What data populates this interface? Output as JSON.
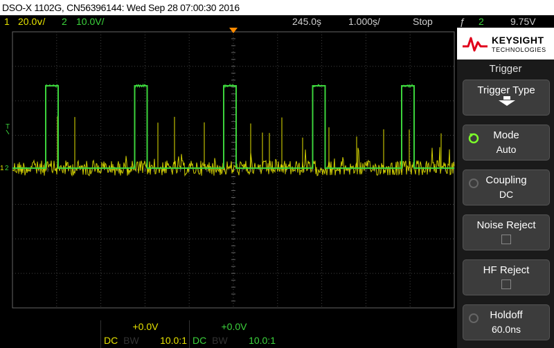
{
  "title": "DSO-X 1102G, CN56396144: Wed Sep 28 07:00:30 2016",
  "status": {
    "ch1_num": "1",
    "ch1_scale": "20.0ⅴ/",
    "ch2_num": "2",
    "ch2_scale": "10.0V/",
    "time_pos": "245.0ș",
    "time_scale": "1.000ș/",
    "run_state": "Stop",
    "trig_icon": "ƒ",
    "trig_source": "2",
    "trig_level": "9.75V"
  },
  "bottom": {
    "ch1": {
      "offset": "+0.0V",
      "coupling": "DC",
      "bw": "BW",
      "probe": "10.0:1"
    },
    "ch2": {
      "offset": "+0.0V",
      "coupling": "DC",
      "bw": "BW",
      "probe": "10.0:1"
    }
  },
  "brand": {
    "name": "KEYSIGHT",
    "sub": "TECHNOLOGIES"
  },
  "menu": {
    "title": "Trigger",
    "softkeys": [
      {
        "label": "Trigger Type",
        "value": ""
      },
      {
        "label": "Mode",
        "value": "Auto"
      },
      {
        "label": "Coupling",
        "value": "DC"
      },
      {
        "label": "Noise Reject",
        "value": ""
      },
      {
        "label": "HF Reject",
        "value": ""
      },
      {
        "label": "Holdoff",
        "value": "60.0ns"
      }
    ]
  },
  "markers": {
    "trigger_level": "T",
    "ch1_ground": "1",
    "ch2_ground": "2"
  },
  "colors": {
    "ch1": "#e6e300",
    "ch2": "#3cd43c",
    "trigger": "#ff8a00",
    "grid": "#444444"
  }
}
